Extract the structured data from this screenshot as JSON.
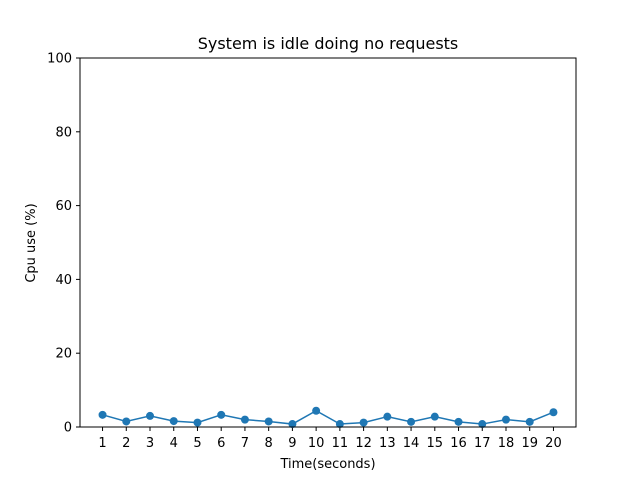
{
  "chart_data": {
    "type": "line",
    "title": "System is idle doing no requests",
    "xlabel": "Time(seconds)",
    "ylabel": "Cpu use (%)",
    "x": [
      1,
      2,
      3,
      4,
      5,
      6,
      7,
      8,
      9,
      10,
      11,
      12,
      13,
      14,
      15,
      16,
      17,
      18,
      19,
      20
    ],
    "x_ticks": [
      "1",
      "2",
      "3",
      "4",
      "5",
      "6",
      "7",
      "8",
      "9",
      "10",
      "11",
      "12",
      "13",
      "14",
      "15",
      "16",
      "17",
      "18",
      "19",
      "20"
    ],
    "series": [
      {
        "values": [
          3.3,
          1.5,
          3.0,
          1.6,
          1.2,
          3.3,
          2.0,
          1.5,
          0.8,
          4.4,
          0.8,
          1.2,
          2.8,
          1.4,
          2.8,
          1.4,
          0.8,
          2.0,
          1.4,
          4.0
        ],
        "color": "#1f77b4",
        "marker": "circle"
      }
    ],
    "xlim": [
      0.05,
      20.95
    ],
    "ylim": [
      0,
      100
    ],
    "y_ticks": [
      "0",
      "20",
      "40",
      "60",
      "80",
      "100"
    ],
    "grid": false,
    "legend": "none"
  }
}
